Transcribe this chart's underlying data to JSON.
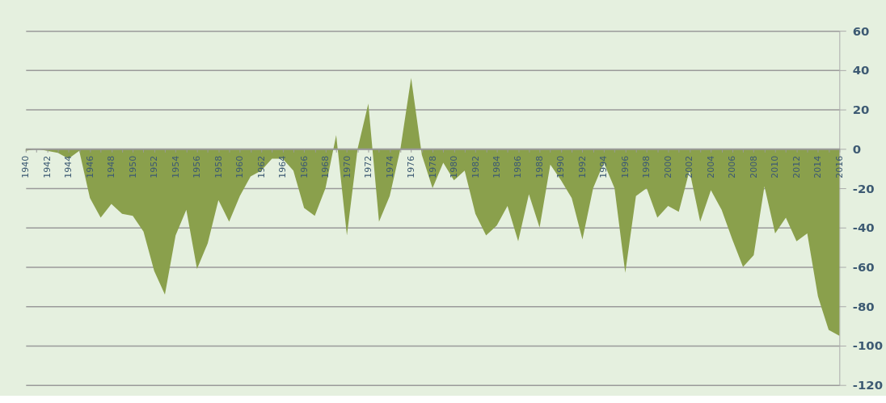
{
  "chart_data": {
    "type": "area",
    "x": [
      1940,
      1941,
      1942,
      1943,
      1944,
      1945,
      1946,
      1947,
      1948,
      1949,
      1950,
      1951,
      1952,
      1953,
      1954,
      1955,
      1956,
      1957,
      1958,
      1959,
      1960,
      1961,
      1962,
      1963,
      1964,
      1965,
      1966,
      1967,
      1968,
      1969,
      1970,
      1971,
      1972,
      1973,
      1974,
      1975,
      1976,
      1977,
      1978,
      1979,
      1980,
      1981,
      1982,
      1983,
      1984,
      1985,
      1986,
      1987,
      1988,
      1989,
      1990,
      1991,
      1992,
      1993,
      1994,
      1995,
      1996,
      1997,
      1998,
      1999,
      2000,
      2001,
      2002,
      2003,
      2004,
      2005,
      2006,
      2007,
      2008,
      2009,
      2010,
      2011,
      2012,
      2013,
      2014,
      2015,
      2016
    ],
    "series": [
      {
        "color": "#8aa04c",
        "values": [
          -1,
          0,
          -1,
          -2,
          -5,
          -1,
          -25,
          -35,
          -28,
          -33,
          -34,
          -42,
          -62,
          -74,
          -44,
          -31,
          -61,
          -48,
          -26,
          -37,
          -24,
          -14,
          -11,
          -5,
          -5,
          -11,
          -30,
          -34,
          -20,
          7,
          -44,
          0,
          23,
          -37,
          -24,
          0,
          36,
          -3,
          -20,
          -7,
          -16,
          -11,
          -33,
          -44,
          -39,
          -29,
          -47,
          -23,
          -40,
          -8,
          -16,
          -25,
          -46,
          -20,
          -7,
          -20,
          -63,
          -24,
          -20,
          -35,
          -29,
          -32,
          -11,
          -37,
          -21,
          -31,
          -46,
          -60,
          -54,
          -19,
          -43,
          -35,
          -47,
          -43,
          -75,
          -92,
          -95
        ]
      }
    ],
    "xlim": [
      1940,
      2016
    ],
    "xticks": [
      1940,
      {
        "value": 1941,
        "label": null
      },
      1942,
      {
        "value": 1943,
        "label": null
      },
      1944,
      {
        "value": 1945,
        "label": null
      },
      1946,
      {
        "value": 1947,
        "label": null
      },
      1948,
      {
        "value": 1949,
        "label": null
      },
      1950,
      {
        "value": 1951,
        "label": null
      },
      1952,
      {
        "value": 1953,
        "label": null
      },
      1954,
      {
        "value": 1955,
        "label": null
      },
      1956,
      {
        "value": 1957,
        "label": null
      },
      1958,
      {
        "value": 1959,
        "label": null
      },
      1960,
      {
        "value": 1961,
        "label": null
      },
      1962,
      {
        "value": 1963,
        "label": null
      },
      1964,
      {
        "value": 1965,
        "label": null
      },
      1966,
      {
        "value": 1967,
        "label": null
      },
      1968,
      {
        "value": 1969,
        "label": null
      },
      1970,
      {
        "value": 1971,
        "label": null
      },
      1972,
      {
        "value": 1973,
        "label": null
      },
      1974,
      {
        "value": 1975,
        "label": null
      },
      1976,
      {
        "value": 1977,
        "label": null
      },
      1978,
      {
        "value": 1979,
        "label": null
      },
      1980,
      {
        "value": 1981,
        "label": null
      },
      1982,
      {
        "value": 1983,
        "label": null
      },
      1984,
      {
        "value": 1985,
        "label": null
      },
      1986,
      {
        "value": 1987,
        "label": null
      },
      1988,
      {
        "value": 1989,
        "label": null
      },
      1990,
      {
        "value": 1991,
        "label": null
      },
      1992,
      {
        "value": 1993,
        "label": null
      },
      1994,
      {
        "value": 1995,
        "label": null
      },
      1996,
      {
        "value": 1997,
        "label": null
      },
      1998,
      {
        "value": 1999,
        "label": null
      },
      2000,
      {
        "value": 2001,
        "label": null
      },
      2002,
      {
        "value": 2003,
        "label": null
      },
      2004,
      {
        "value": 2005,
        "label": null
      },
      2006,
      {
        "value": 2007,
        "label": null
      },
      2008,
      {
        "value": 2009,
        "label": null
      },
      2010,
      {
        "value": 2011,
        "label": null
      },
      2012,
      {
        "value": 2013,
        "label": null
      },
      2014,
      {
        "value": 2015,
        "label": null
      },
      2016
    ],
    "ylim": [
      -120,
      60
    ],
    "yticks": [
      -120,
      -100,
      -80,
      -60,
      -40,
      -20,
      0,
      20,
      40,
      60
    ],
    "grid": "y"
  }
}
